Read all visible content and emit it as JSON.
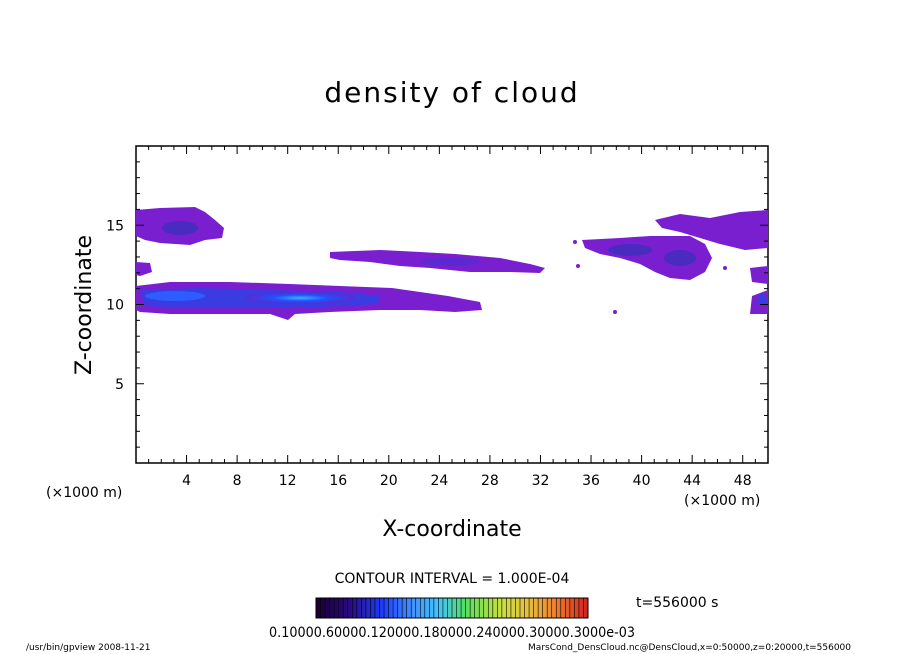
{
  "chart_data": {
    "type": "heatmap",
    "title": "density of cloud",
    "xlabel": "X-coordinate",
    "ylabel": "Z-coordinate",
    "x_unit_left": "(×1000 m)",
    "x_unit_right": "(×1000 m)",
    "xlim": [
      0,
      50
    ],
    "ylim": [
      0,
      20
    ],
    "x_ticks": [
      "4",
      "8",
      "12",
      "16",
      "20",
      "24",
      "28",
      "32",
      "36",
      "40",
      "44",
      "48"
    ],
    "y_ticks": [
      "5",
      "10",
      "15"
    ],
    "contour_interval_label": "CONTOUR INTERVAL = 1.000E-04",
    "time_label": "t=556000 s",
    "colorbar_labels": "0.10000.60000.120000.180000.240000.30000.3000e-03",
    "colorbar_colors": [
      "#1a0030",
      "#2a0a80",
      "#1f40ff",
      "#3f8fff",
      "#41c4ff",
      "#2fd6a0",
      "#55e060",
      "#a8e040",
      "#e6d040",
      "#f09a30",
      "#e05030",
      "#d02020"
    ],
    "cloud_regions": [
      {
        "name": "upper-left-cloud",
        "x": [
          0,
          7
        ],
        "z": [
          13.8,
          16.0
        ],
        "level": "low"
      },
      {
        "name": "main-band",
        "x": [
          0,
          27
        ],
        "z": [
          9.4,
          11.4
        ],
        "level": "high"
      },
      {
        "name": "mid-cloud",
        "x": [
          15,
          32
        ],
        "z": [
          12.0,
          13.2
        ],
        "level": "low"
      },
      {
        "name": "right-cloud",
        "x": [
          35,
          45
        ],
        "z": [
          11.8,
          14.2
        ],
        "level": "low"
      },
      {
        "name": "right-edge-cloud",
        "x": [
          41,
          50
        ],
        "z": [
          13.8,
          15.8
        ],
        "level": "low"
      }
    ]
  },
  "footer": {
    "left": "/usr/bin/gpview   2008-11-21",
    "right": "MarsCond_DensCloud.nc@DensCloud,x=0:50000,z=0:20000,t=556000"
  }
}
